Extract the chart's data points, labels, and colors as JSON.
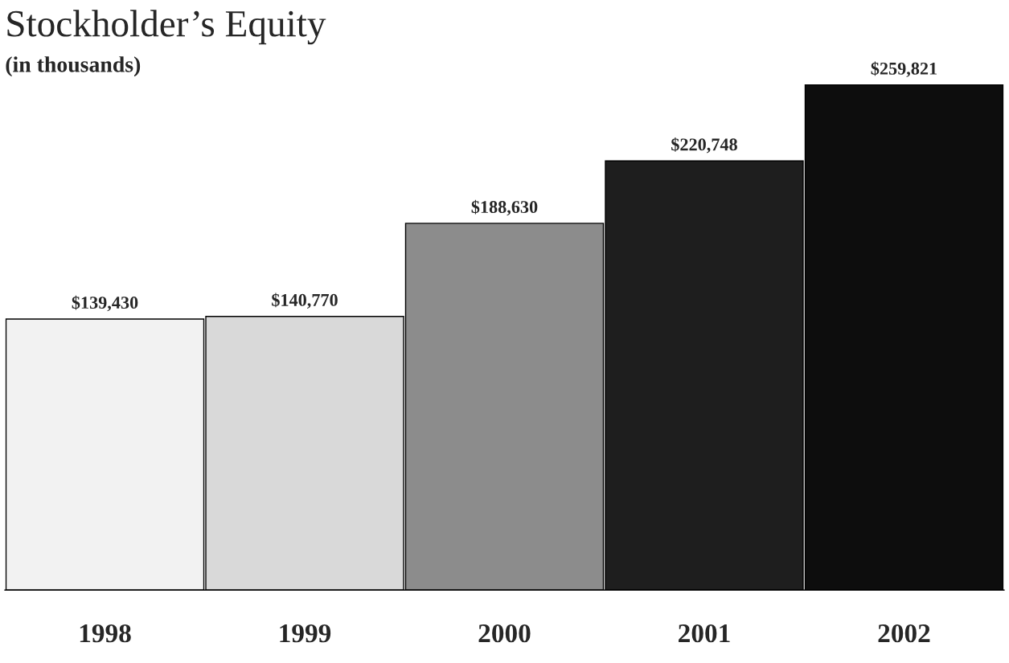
{
  "chart_data": {
    "type": "bar",
    "title": "Stockholder’s Equity",
    "subtitle": "(in thousands)",
    "categories": [
      "1998",
      "1999",
      "2000",
      "2001",
      "2002"
    ],
    "values": [
      139430,
      140770,
      188630,
      220748,
      259821
    ],
    "colors": [
      "#f2f2f2",
      "#d9d9d9",
      "#8c8c8c",
      "#1e1e1e",
      "#0d0d0d"
    ],
    "value_labels": [
      "$139,430",
      "$140,770",
      "$188,630",
      "$220,748",
      "$259,821"
    ],
    "grid": false,
    "legend": false
  }
}
